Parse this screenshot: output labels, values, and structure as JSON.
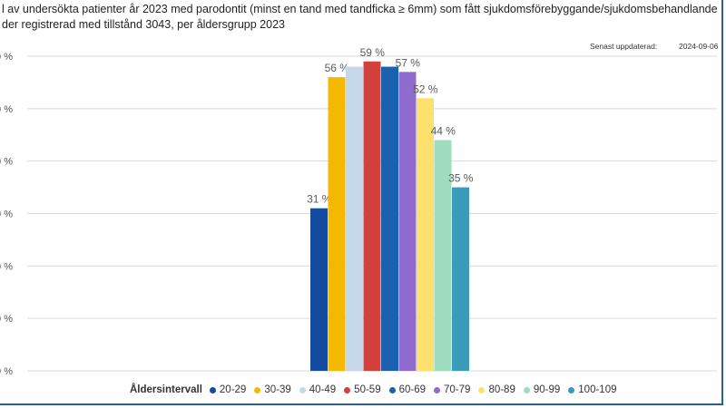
{
  "header": {
    "title_line1": "l av undersökta patienter år 2023 med parodontit (minst en tand med tandficka ≥ 6mm) som fått sjukdomsförebyggande/sjukdomsbehandlande",
    "title_line2": "der registrerad med tillstånd 3043, per åldersgrupp 2023",
    "updated_label": "Senast uppdaterad:",
    "updated_date": "2024-09-06"
  },
  "legend": {
    "title": "Åldersintervall"
  },
  "chart_data": {
    "type": "bar",
    "categories": [
      "20-29",
      "30-39",
      "40-49",
      "50-59",
      "60-69",
      "70-79",
      "80-89",
      "90-99",
      "100-109"
    ],
    "values": [
      31,
      56,
      58,
      59,
      58,
      57,
      52,
      44,
      35
    ],
    "data_labels": [
      "31 %",
      "56 %",
      "",
      "59 %",
      "",
      "57 %",
      "52 %",
      "44 %",
      "35 %"
    ],
    "colors": [
      "#134c9e",
      "#f5b800",
      "#c5d9ea",
      "#d2413b",
      "#1a62b0",
      "#8f6bd0",
      "#fde16e",
      "#9fdcbd",
      "#3a9cb8"
    ],
    "y_tick_labels": [
      "0 %",
      "0 %",
      "0 %",
      "0 %",
      "0 %",
      "0 %",
      "0 %"
    ],
    "ylim": [
      0,
      60
    ],
    "grid": true,
    "legend_position": "bottom"
  }
}
